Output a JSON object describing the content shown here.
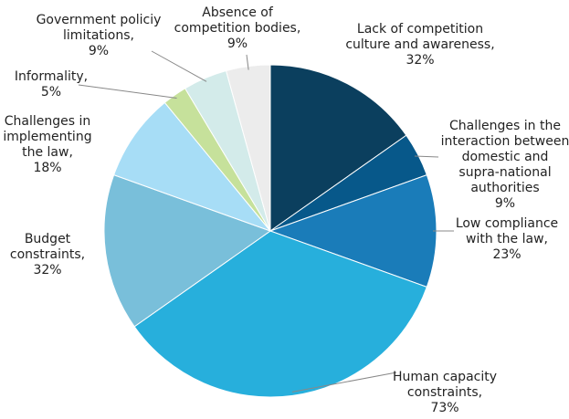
{
  "chart_data": {
    "type": "pie",
    "categories": [
      [
        "Lack of competition",
        "culture and awareness,"
      ],
      [
        "Challenges in the",
        "interaction between",
        "domestic and",
        "supra-national",
        "authorities"
      ],
      [
        "Low compliance",
        "with the law,"
      ],
      [
        "Human capacity",
        "constraints,"
      ],
      [
        "Budget",
        "constraints,"
      ],
      [
        "Challenges in",
        "implementing",
        "the law,"
      ],
      [
        "Informality,"
      ],
      [
        "Government policiy",
        "limitations,"
      ],
      [
        "Absence of",
        "competition bodies,"
      ]
    ],
    "values": [
      32,
      9,
      23,
      73,
      32,
      18,
      5,
      9,
      9
    ],
    "value_labels": [
      "32%",
      "9%",
      "23%",
      "73%",
      "32%",
      "18%",
      "5%",
      "9%",
      "9%"
    ],
    "colors": [
      "#0b3f5e",
      "#07588a",
      "#1a7cb9",
      "#27afdc",
      "#79bfda",
      "#a7ddf6",
      "#c6e19b",
      "#d3ebea",
      "#ececec"
    ]
  }
}
